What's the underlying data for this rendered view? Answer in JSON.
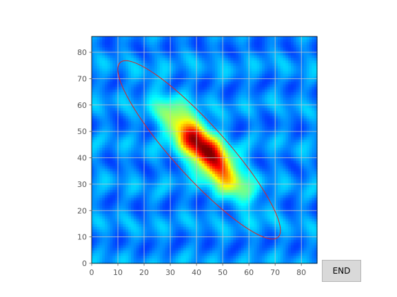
{
  "end_button": {
    "label": "END"
  },
  "chart_data": {
    "type": "heatmap",
    "title": "",
    "xlabel": "",
    "ylabel": "",
    "xlim": [
      0,
      86
    ],
    "ylim": [
      0,
      86
    ],
    "xticks": [
      0,
      10,
      20,
      30,
      40,
      50,
      60,
      70,
      80
    ],
    "yticks": [
      0,
      10,
      20,
      30,
      40,
      50,
      60,
      70,
      80
    ],
    "grid": true,
    "colormap": "jet",
    "blob": {
      "center": [
        43,
        43
      ],
      "peak": 1.0,
      "background": 0.26,
      "major_sigma": 13.5,
      "minor_sigma": 4.3,
      "angle_deg": -48
    },
    "ellipse": {
      "center": [
        41,
        43
      ],
      "semi_major": 45,
      "semi_minor": 10,
      "angle_deg": -48,
      "color": "#e02020"
    }
  }
}
